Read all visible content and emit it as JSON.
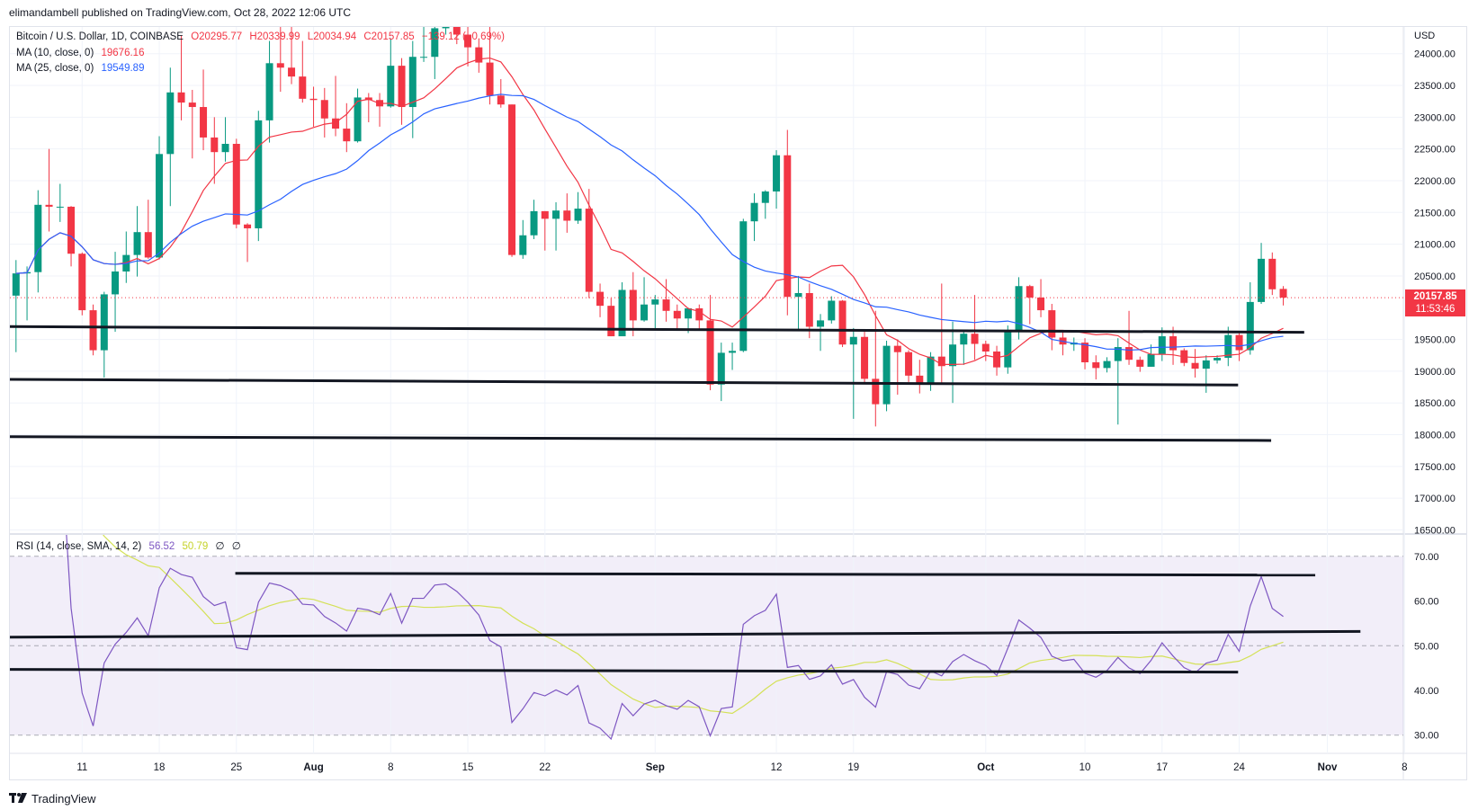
{
  "header": {
    "published": "elimandambell published on TradingView.com, Oct 28, 2022 12:06 UTC"
  },
  "legend": {
    "symbol": "Bitcoin / U.S. Dollar, 1D, COINBASE",
    "open": "O20295.77",
    "high": "H20339.99",
    "low": "L20034.94",
    "close": "C20157.85",
    "change": "−139.12 (−0.69%)",
    "ma10_label": "MA (10, close, 0)",
    "ma10_value": "19676.16",
    "ma25_label": "MA (25, close, 0)",
    "ma25_value": "19549.89",
    "rsi_label": "RSI (14, close, SMA, 14, 2)",
    "rsi_value": "56.52",
    "rsi_sma_value": "50.79",
    "rsi_extra1": "∅",
    "rsi_extra2": "∅"
  },
  "price_axis": {
    "currency": "USD",
    "last_price": "20157.85",
    "countdown": "11:53:46"
  },
  "footer": {
    "brand": "TradingView",
    "logo": "TV"
  },
  "colors": {
    "up": "#089981",
    "down": "#f23645",
    "ma10": "#f23645",
    "ma25": "#2962ff",
    "rsi": "#7e57c2",
    "rsi_sma": "#d4e157",
    "drawing": "#131722"
  },
  "chart_data": {
    "type": "candlestick",
    "title": "Bitcoin / U.S. Dollar, 1D, COINBASE",
    "start_date": "2022-07-05",
    "ylim": [
      16500,
      24300
    ],
    "y_ticks": [
      24000,
      23500,
      23000,
      22500,
      22000,
      21500,
      21000,
      20500,
      19500,
      19000,
      18500,
      18000,
      17500,
      17000,
      16500
    ],
    "x_ticks": [
      {
        "label": "11",
        "day": 6
      },
      {
        "label": "18",
        "day": 13
      },
      {
        "label": "25",
        "day": 20
      },
      {
        "label": "Aug",
        "day": 27,
        "bold": true
      },
      {
        "label": "8",
        "day": 34
      },
      {
        "label": "15",
        "day": 41
      },
      {
        "label": "22",
        "day": 48
      },
      {
        "label": "Sep",
        "day": 58,
        "bold": true
      },
      {
        "label": "12",
        "day": 69
      },
      {
        "label": "19",
        "day": 76
      },
      {
        "label": "Oct",
        "day": 88,
        "bold": true
      },
      {
        "label": "10",
        "day": 97
      },
      {
        "label": "17",
        "day": 104
      },
      {
        "label": "24",
        "day": 111
      },
      {
        "label": "Nov",
        "day": 119,
        "bold": true
      },
      {
        "label": "8",
        "day": 126
      }
    ],
    "ohlc": [
      [
        20190,
        20750,
        19300,
        20540
      ],
      [
        20540,
        20650,
        19800,
        20560
      ],
      [
        20560,
        21850,
        20240,
        21620
      ],
      [
        21620,
        22500,
        21200,
        21590
      ],
      [
        21590,
        21950,
        21350,
        21590
      ],
      [
        21590,
        21600,
        20650,
        20850
      ],
      [
        20850,
        20870,
        19880,
        19960
      ],
      [
        19960,
        20050,
        19250,
        19330
      ],
      [
        19330,
        20250,
        18900,
        20210
      ],
      [
        20210,
        20880,
        19620,
        20570
      ],
      [
        20570,
        21200,
        20390,
        20830
      ],
      [
        20830,
        21600,
        20490,
        21190
      ],
      [
        21190,
        21700,
        20770,
        20790
      ],
      [
        20790,
        22700,
        20760,
        22420
      ],
      [
        22420,
        23780,
        21600,
        23390
      ],
      [
        23390,
        24280,
        22950,
        23230
      ],
      [
        23230,
        23430,
        22350,
        23160
      ],
      [
        23160,
        23750,
        22480,
        22680
      ],
      [
        22680,
        23000,
        21950,
        22450
      ],
      [
        22450,
        23000,
        22300,
        22580
      ],
      [
        22580,
        22660,
        21250,
        21310
      ],
      [
        21310,
        21330,
        20720,
        21250
      ],
      [
        21250,
        23100,
        21050,
        22950
      ],
      [
        22950,
        24200,
        22600,
        23850
      ],
      [
        23850,
        24450,
        23400,
        23780
      ],
      [
        23780,
        24650,
        23520,
        23640
      ],
      [
        23640,
        24200,
        23230,
        23290
      ],
      [
        23290,
        23480,
        22850,
        23270
      ],
      [
        23270,
        23460,
        22680,
        22980
      ],
      [
        22980,
        23650,
        22700,
        22820
      ],
      [
        22820,
        23220,
        22450,
        22620
      ],
      [
        22620,
        23450,
        22600,
        23310
      ],
      [
        23310,
        23380,
        22920,
        23270
      ],
      [
        23270,
        23380,
        22850,
        23170
      ],
      [
        23170,
        24240,
        23150,
        23810
      ],
      [
        23810,
        23930,
        22880,
        23160
      ],
      [
        23160,
        24200,
        22670,
        23950
      ],
      [
        23950,
        24900,
        23870,
        23950
      ],
      [
        23950,
        24450,
        23600,
        24400
      ],
      [
        24400,
        24880,
        24300,
        24440
      ],
      [
        24440,
        25050,
        24150,
        24300
      ],
      [
        24300,
        25200,
        23800,
        24100
      ],
      [
        24100,
        24230,
        23700,
        23860
      ],
      [
        23860,
        24450,
        23200,
        23340
      ],
      [
        23340,
        23600,
        23150,
        23200
      ],
      [
        23200,
        23200,
        20800,
        20830
      ],
      [
        20830,
        21380,
        20770,
        21140
      ],
      [
        21140,
        21700,
        21080,
        21520
      ],
      [
        21520,
        21520,
        20900,
        21400
      ],
      [
        21400,
        21660,
        20900,
        21530
      ],
      [
        21530,
        21800,
        21180,
        21370
      ],
      [
        21370,
        21820,
        21320,
        21560
      ],
      [
        21560,
        21870,
        20150,
        20250
      ],
      [
        20250,
        20380,
        19850,
        20030
      ],
      [
        20030,
        20150,
        19550,
        19550
      ],
      [
        19550,
        20400,
        19560,
        20280
      ],
      [
        20280,
        20560,
        19550,
        19800
      ],
      [
        19800,
        20480,
        19780,
        20050
      ],
      [
        20050,
        20200,
        19650,
        20130
      ],
      [
        20130,
        20450,
        19780,
        19950
      ],
      [
        19950,
        20050,
        19660,
        19830
      ],
      [
        19830,
        20000,
        19600,
        19990
      ],
      [
        19990,
        20050,
        19650,
        19800
      ],
      [
        19800,
        20200,
        18700,
        18790
      ],
      [
        18790,
        19450,
        18530,
        19290
      ],
      [
        19290,
        19450,
        19020,
        19320
      ],
      [
        19320,
        21400,
        19300,
        21360
      ],
      [
        21360,
        21800,
        21050,
        21650
      ],
      [
        21650,
        21850,
        21400,
        21830
      ],
      [
        21830,
        22480,
        21560,
        22400
      ],
      [
        22400,
        22800,
        19880,
        20170
      ],
      [
        20170,
        20500,
        19640,
        20230
      ],
      [
        20230,
        20380,
        19520,
        19700
      ],
      [
        19700,
        19900,
        19320,
        19800
      ],
      [
        19800,
        20180,
        19750,
        20110
      ],
      [
        20110,
        20120,
        19380,
        19420
      ],
      [
        19420,
        19680,
        18250,
        19540
      ],
      [
        19540,
        19640,
        18800,
        18880
      ],
      [
        18880,
        19950,
        18130,
        18480
      ],
      [
        18480,
        19480,
        18370,
        19400
      ],
      [
        19400,
        19500,
        18630,
        19300
      ],
      [
        19300,
        19330,
        18830,
        18930
      ],
      [
        18930,
        19180,
        18650,
        18800
      ],
      [
        18800,
        19300,
        18690,
        19230
      ],
      [
        19230,
        20380,
        18820,
        19080
      ],
      [
        19080,
        19780,
        18500,
        19420
      ],
      [
        19420,
        19650,
        19100,
        19590
      ],
      [
        19590,
        20200,
        19180,
        19430
      ],
      [
        19430,
        19480,
        19160,
        19310
      ],
      [
        19310,
        19400,
        18930,
        19060
      ],
      [
        19060,
        19720,
        18960,
        19630
      ],
      [
        19630,
        20480,
        19500,
        20340
      ],
      [
        20340,
        20360,
        19740,
        20160
      ],
      [
        20160,
        20450,
        19850,
        19960
      ],
      [
        19960,
        20060,
        19330,
        19530
      ],
      [
        19530,
        19620,
        19250,
        19420
      ],
      [
        19420,
        19530,
        19320,
        19450
      ],
      [
        19450,
        19520,
        19030,
        19140
      ],
      [
        19140,
        19250,
        18870,
        19050
      ],
      [
        19050,
        19220,
        18980,
        19160
      ],
      [
        19160,
        19520,
        18160,
        19380
      ],
      [
        19380,
        19950,
        19100,
        19180
      ],
      [
        19180,
        19230,
        18990,
        19070
      ],
      [
        19070,
        19420,
        19070,
        19270
      ],
      [
        19270,
        19690,
        19160,
        19550
      ],
      [
        19550,
        19700,
        19100,
        19330
      ],
      [
        19330,
        19360,
        19080,
        19130
      ],
      [
        19130,
        19350,
        18900,
        19040
      ],
      [
        19040,
        19250,
        18660,
        19170
      ],
      [
        19170,
        19250,
        19120,
        19210
      ],
      [
        19210,
        19700,
        19080,
        19570
      ],
      [
        19570,
        19600,
        19160,
        19330
      ],
      [
        19330,
        20400,
        19260,
        20090
      ],
      [
        20090,
        21020,
        20060,
        20770
      ],
      [
        20770,
        20870,
        20200,
        20290
      ],
      [
        20295.77,
        20339.99,
        20034.94,
        20157.85
      ]
    ],
    "indicators": {
      "ma": [
        10,
        25
      ],
      "rsi": {
        "length": 14,
        "sma": 14,
        "levels": [
          70,
          50,
          30
        ],
        "ticks": [
          70,
          60,
          50,
          40,
          30
        ]
      }
    },
    "drawings": {
      "price": [
        {
          "from": [
            -0.6,
            19702
          ],
          "to": [
            116.9,
            19613
          ]
        },
        {
          "from": [
            -0.6,
            18872
          ],
          "to": [
            110.9,
            18783
          ]
        },
        {
          "from": [
            -0.6,
            17968
          ],
          "to": [
            113.9,
            17909
          ]
        }
      ],
      "rsi": [
        {
          "from": [
            19.9,
            66.2
          ],
          "to": [
            117.9,
            65.8
          ]
        },
        {
          "from": [
            -0.6,
            51.9
          ],
          "to": [
            122,
            53.2
          ]
        },
        {
          "from": [
            -0.6,
            44.7
          ],
          "to": [
            110.9,
            44.1
          ]
        }
      ]
    }
  }
}
